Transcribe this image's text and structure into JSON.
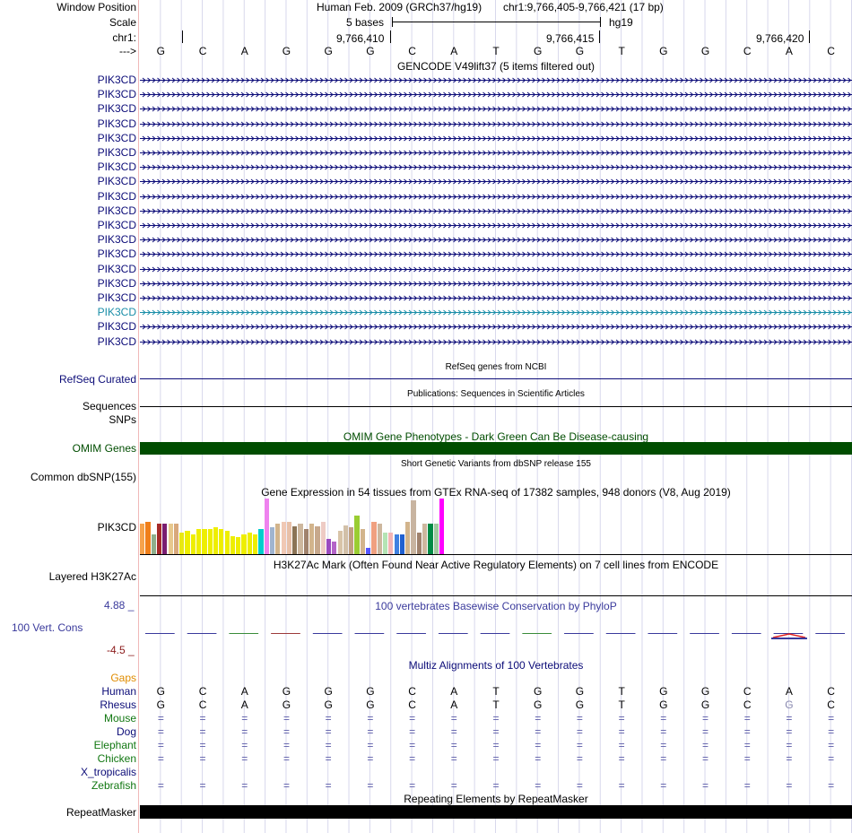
{
  "header": {
    "window_position_label": "Window Position",
    "assembly": "Human Feb. 2009 (GRCh37/hg19)",
    "position": "chr1:9,766,405-9,766,421 (17 bp)",
    "scale_label": "Scale",
    "scale_text": "5 bases",
    "db": "hg19",
    "chrom_label": "chr1:",
    "ticks": [
      "9,766,410",
      "9,766,415",
      "9,766,420"
    ],
    "arrow_label": "--->",
    "bases": [
      "G",
      "C",
      "A",
      "G",
      "G",
      "G",
      "C",
      "A",
      "T",
      "G",
      "G",
      "T",
      "G",
      "G",
      "C",
      "A",
      "C"
    ]
  },
  "gencode": {
    "title": "GENCODE V49lift37 (5 items filtered out)",
    "items": [
      "PIK3CD",
      "PIK3CD",
      "PIK3CD",
      "PIK3CD",
      "PIK3CD",
      "PIK3CD",
      "PIK3CD",
      "PIK3CD",
      "PIK3CD",
      "PIK3CD",
      "PIK3CD",
      "PIK3CD",
      "PIK3CD",
      "PIK3CD",
      "PIK3CD",
      "PIK3CD",
      "PIK3CD",
      "PIK3CD",
      "PIK3CD"
    ],
    "highlight_index": 16,
    "color": "#0c0c78",
    "highlight_color": "#1a8ea8"
  },
  "refseq": {
    "title": "RefSeq genes from NCBI",
    "label": "RefSeq Curated",
    "color": "#0c0c78"
  },
  "publications": {
    "title": "Publications: Sequences in Scientific Articles",
    "label": "Sequences"
  },
  "snps": {
    "label": "SNPs"
  },
  "omim": {
    "title": "OMIM Gene Phenotypes - Dark Green Can Be Disease-causing",
    "label": "OMIM Genes",
    "color": "#004d00"
  },
  "dbsnp": {
    "title": "Short Genetic Variants from dbSNP release 155",
    "label": "Common dbSNP(155)"
  },
  "gtex": {
    "title": "Gene Expression in 54 tissues from GTEx RNA-seq of 17382 samples, 948 donors (V8, Aug 2019)",
    "label": "PIK3CD",
    "bars": [
      {
        "v": 0.55,
        "c": "#f6a34c"
      },
      {
        "v": 0.58,
        "c": "#f07f1a"
      },
      {
        "v": 0.35,
        "c": "#8faf8c"
      },
      {
        "v": 0.55,
        "c": "#a52a2a"
      },
      {
        "v": 0.55,
        "c": "#7a1d70"
      },
      {
        "v": 0.55,
        "c": "#e7c88d"
      },
      {
        "v": 0.55,
        "c": "#d8a87b"
      },
      {
        "v": 0.38,
        "c": "#e8e811"
      },
      {
        "v": 0.42,
        "c": "#eeee00"
      },
      {
        "v": 0.35,
        "c": "#eeee00"
      },
      {
        "v": 0.45,
        "c": "#eeee00"
      },
      {
        "v": 0.45,
        "c": "#eeee00"
      },
      {
        "v": 0.45,
        "c": "#eeee00"
      },
      {
        "v": 0.48,
        "c": "#eeee00"
      },
      {
        "v": 0.45,
        "c": "#eeee00"
      },
      {
        "v": 0.42,
        "c": "#eeee00"
      },
      {
        "v": 0.32,
        "c": "#eeee00"
      },
      {
        "v": 0.3,
        "c": "#eeee00"
      },
      {
        "v": 0.35,
        "c": "#eeee00"
      },
      {
        "v": 0.38,
        "c": "#eeee00"
      },
      {
        "v": 0.35,
        "c": "#eeee00"
      },
      {
        "v": 0.45,
        "c": "#00cdcd"
      },
      {
        "v": 1.0,
        "c": "#ee82ee"
      },
      {
        "v": 0.48,
        "c": "#a0b4cf"
      },
      {
        "v": 0.55,
        "c": "#d2b48c"
      },
      {
        "v": 0.58,
        "c": "#f0c8b4"
      },
      {
        "v": 0.58,
        "c": "#e8c0a8"
      },
      {
        "v": 0.5,
        "c": "#8b7355"
      },
      {
        "v": 0.55,
        "c": "#cdb79e"
      },
      {
        "v": 0.45,
        "c": "#a0826d"
      },
      {
        "v": 0.55,
        "c": "#d2b48c"
      },
      {
        "v": 0.5,
        "c": "#c7a88c"
      },
      {
        "v": 0.58,
        "c": "#eecbc4"
      },
      {
        "v": 0.28,
        "c": "#9b4ac0"
      },
      {
        "v": 0.22,
        "c": "#b464c8"
      },
      {
        "v": 0.42,
        "c": "#d8c4a8"
      },
      {
        "v": 0.52,
        "c": "#d2c0a8"
      },
      {
        "v": 0.48,
        "c": "#c0a080"
      },
      {
        "v": 0.7,
        "c": "#9acd32"
      },
      {
        "v": 0.45,
        "c": "#d2b48c"
      },
      {
        "v": 0.12,
        "c": "#5555ff"
      },
      {
        "v": 0.58,
        "c": "#f0a080"
      },
      {
        "v": 0.55,
        "c": "#cdb79e"
      },
      {
        "v": 0.38,
        "c": "#b4e4b4"
      },
      {
        "v": 0.38,
        "c": "#f4b4b4"
      },
      {
        "v": 0.35,
        "c": "#4080e0"
      },
      {
        "v": 0.35,
        "c": "#2060d0"
      },
      {
        "v": 0.58,
        "c": "#d2b48c"
      },
      {
        "v": 0.97,
        "c": "#c8b4a0"
      },
      {
        "v": 0.38,
        "c": "#a0826d"
      },
      {
        "v": 0.55,
        "c": "#cdb79e"
      },
      {
        "v": 0.55,
        "c": "#008b45"
      },
      {
        "v": 0.55,
        "c": "#a0c8a0"
      },
      {
        "v": 1.0,
        "c": "#ff00ff"
      }
    ]
  },
  "h3k27ac": {
    "title": "H3K27Ac Mark (Often Found Near Active Regulatory Elements) on 7 cell lines from ENCODE",
    "label": "Layered H3K27Ac"
  },
  "phylop": {
    "title": "100 vertebrates Basewise Conservation by PhyloP",
    "label": "100 Vert. Cons",
    "max": "4.88 _",
    "min": "-4.5 _",
    "color": "#3a3a9c",
    "min_color": "#8b1a1a"
  },
  "multiz": {
    "title": "Multiz Alignments of 100 Vertebrates",
    "gaps_label": "Gaps",
    "gaps_color": "#e08c00",
    "species": [
      {
        "name": "Human",
        "color": "#0c0c78",
        "row": [
          "G",
          "C",
          "A",
          "G",
          "G",
          "G",
          "C",
          "A",
          "T",
          "G",
          "G",
          "T",
          "G",
          "G",
          "C",
          "A",
          "C"
        ]
      },
      {
        "name": "Rhesus",
        "color": "#0c0c78",
        "row": [
          "G",
          "C",
          "A",
          "G",
          "G",
          "G",
          "C",
          "A",
          "T",
          "G",
          "G",
          "T",
          "G",
          "G",
          "C",
          "G",
          "C"
        ]
      },
      {
        "name": "Mouse",
        "color": "#117711",
        "row": [
          "=",
          "=",
          "=",
          "=",
          "=",
          "=",
          "=",
          "=",
          "=",
          "=",
          "=",
          "=",
          "=",
          "=",
          "=",
          "=",
          "="
        ]
      },
      {
        "name": "Dog",
        "color": "#0c0c78",
        "row": [
          "=",
          "=",
          "=",
          "=",
          "=",
          "=",
          "=",
          "=",
          "=",
          "=",
          "=",
          "=",
          "=",
          "=",
          "=",
          "=",
          "="
        ]
      },
      {
        "name": "Elephant",
        "color": "#117711",
        "row": [
          "=",
          "=",
          "=",
          "=",
          "=",
          "=",
          "=",
          "=",
          "=",
          "=",
          "=",
          "=",
          "=",
          "=",
          "=",
          "=",
          "="
        ]
      },
      {
        "name": "Chicken",
        "color": "#117711",
        "row": [
          "=",
          "=",
          "=",
          "=",
          "=",
          "=",
          "=",
          "=",
          "=",
          "=",
          "=",
          "=",
          "=",
          "=",
          "=",
          "=",
          "="
        ]
      },
      {
        "name": "X_tropicalis",
        "color": "#0c0c78",
        "row": []
      },
      {
        "name": "Zebrafish",
        "color": "#117711",
        "row": [
          "=",
          "=",
          "=",
          "=",
          "=",
          "=",
          "=",
          "=",
          "=",
          "=",
          "=",
          "=",
          "=",
          "=",
          "=",
          "=",
          "="
        ]
      }
    ]
  },
  "repeatmasker": {
    "title": "Repeating Elements by RepeatMasker",
    "label": "RepeatMasker"
  }
}
